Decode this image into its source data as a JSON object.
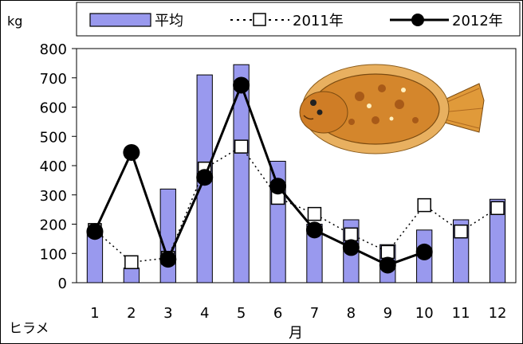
{
  "chart_data": {
    "type": "bar",
    "unit_label": "kg",
    "species_label": "ヒラメ",
    "xlabel": "月",
    "ylabel": "kg",
    "categories": [
      "1",
      "2",
      "3",
      "4",
      "5",
      "6",
      "7",
      "8",
      "9",
      "10",
      "11",
      "12"
    ],
    "yticks": [
      "0",
      "100",
      "200",
      "300",
      "400",
      "500",
      "600",
      "700",
      "800"
    ],
    "ylim": [
      0,
      800
    ],
    "grid": false,
    "legend_position": "top",
    "series": [
      {
        "name": "平均",
        "kind": "bar",
        "color": "#9999ee",
        "values": [
          175,
          50,
          320,
          710,
          745,
          415,
          200,
          215,
          130,
          180,
          215,
          285
        ]
      },
      {
        "name": "2011年",
        "kind": "line-dotted-square",
        "color": "#000000",
        "values": [
          180,
          70,
          85,
          390,
          465,
          290,
          235,
          165,
          105,
          265,
          175,
          255
        ]
      },
      {
        "name": "2012年",
        "kind": "line-solid-circle",
        "color": "#000000",
        "values": [
          175,
          445,
          80,
          360,
          675,
          330,
          180,
          120,
          60,
          105,
          null,
          null
        ]
      }
    ]
  },
  "image": {
    "name": "flounder-illustration"
  }
}
